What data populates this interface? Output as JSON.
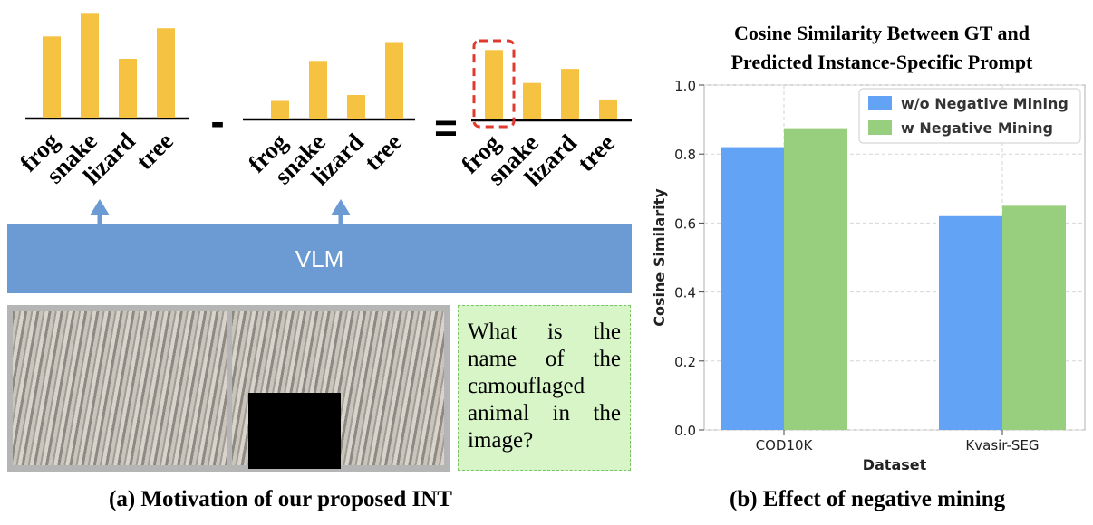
{
  "panel_a": {
    "vlm_label": "VLM",
    "question": "What is the name of the camouflaged animal in the image?",
    "minus_sign": "-",
    "equals_sign": "=",
    "caption": "(a) Motivation of our proposed INT",
    "categories": [
      "frog",
      "snake",
      "lizard",
      "tree"
    ],
    "bar_color": "#f5c242",
    "highlight_color": "#e03a2f",
    "arrow_color": "#6b9bd2",
    "highlight_category": "frog"
  },
  "chart_data": [
    {
      "type": "bar",
      "categories": [
        "frog",
        "snake",
        "lizard",
        "tree"
      ],
      "values": [
        0.69,
        0.89,
        0.5,
        0.76
      ],
      "ylim": [
        0,
        1
      ]
    },
    {
      "type": "bar",
      "categories": [
        "frog",
        "snake",
        "lizard",
        "tree"
      ],
      "values": [
        0.15,
        0.49,
        0.2,
        0.65
      ],
      "ylim": [
        0,
        1
      ]
    },
    {
      "type": "bar",
      "categories": [
        "frog",
        "snake",
        "lizard",
        "tree"
      ],
      "values": [
        0.59,
        0.31,
        0.43,
        0.17
      ],
      "ylim": [
        0,
        1
      ]
    },
    {
      "type": "bar",
      "title": "Cosine Similarity Between GT and\nPredicted Instance-Specific Prompt",
      "xlabel": "Dataset",
      "ylabel": "Cosine Similarity",
      "categories": [
        "COD10K",
        "Kvasir-SEG"
      ],
      "series": [
        {
          "name": "w/o Negative Mining",
          "values": [
            0.82,
            0.62
          ],
          "color": "#62a3f5"
        },
        {
          "name": "w Negative Mining",
          "values": [
            0.875,
            0.65
          ],
          "color": "#97cf7f"
        }
      ],
      "ylim": [
        0,
        1
      ],
      "yticks": [
        "0.0",
        "0.2",
        "0.4",
        "0.6",
        "0.8",
        "1.0"
      ],
      "grid": true,
      "legend_position": "top-right",
      "caption": "(b) Effect of negative mining"
    }
  ]
}
